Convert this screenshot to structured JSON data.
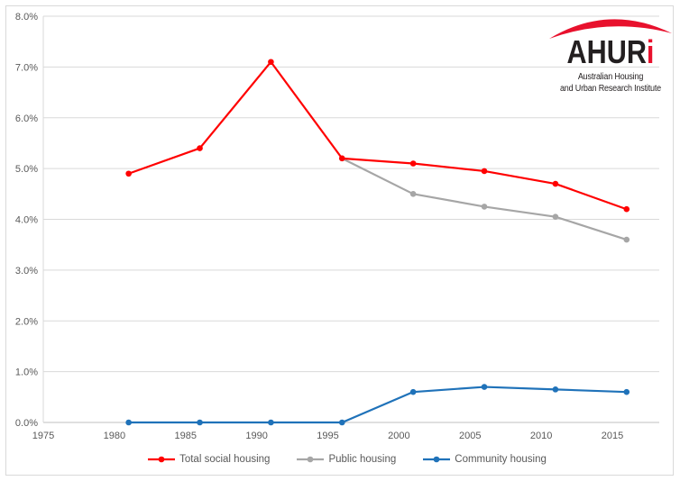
{
  "figure": {
    "background_color": "#ffffff",
    "border_color": "#d9d9d9"
  },
  "logo": {
    "brand_text_black": "AHUR",
    "brand_text_red": "i",
    "tagline_line1": "Australian Housing",
    "tagline_line2": "and Urban Research Institute",
    "arc_color": "#e8112d",
    "accent_color": "#e8112d",
    "text_color": "#231f20"
  },
  "chart_data": {
    "type": "line",
    "title": "",
    "xlabel": "",
    "ylabel": "",
    "x": [
      1981,
      1986,
      1991,
      1996,
      2001,
      2006,
      2011,
      2016
    ],
    "series": [
      {
        "name": "Total social housing",
        "color": "#ff0000",
        "values": [
          4.9,
          5.4,
          7.1,
          5.2,
          5.1,
          4.95,
          4.7,
          4.2
        ]
      },
      {
        "name": "Public housing",
        "color": "#a6a6a6",
        "values": [
          null,
          null,
          null,
          5.2,
          4.5,
          4.25,
          4.05,
          3.6
        ]
      },
      {
        "name": "Community housing",
        "color": "#1f72b9",
        "values": [
          0,
          0,
          0,
          0,
          0.6,
          0.7,
          0.65,
          0.6
        ]
      }
    ],
    "x_ticks": [
      1975,
      1980,
      1985,
      1990,
      1995,
      2000,
      2005,
      2010,
      2015
    ],
    "y_tick_labels": [
      "0.0%",
      "1.0%",
      "2.0%",
      "3.0%",
      "4.0%",
      "5.0%",
      "6.0%",
      "7.0%",
      "8.0%"
    ],
    "ylim": [
      0,
      8
    ],
    "xlim": [
      1975,
      2018.3
    ],
    "grid": "horizontal",
    "gridline_color": "#d9d9d9",
    "axis_line_color": "#bfbfbf",
    "axis_label_color": "#595959",
    "legend_position": "bottom"
  }
}
